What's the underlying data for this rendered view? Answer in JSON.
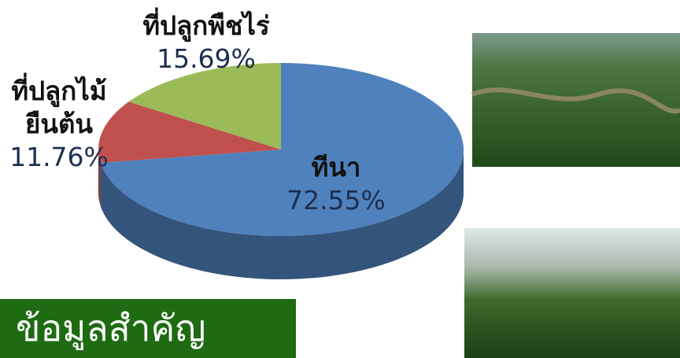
{
  "chart_data": {
    "type": "pie",
    "categories": [
      "ทีนา",
      "ที่ปลูกไม้\nยืนต้น",
      "ที่ปลูกพืชไร่"
    ],
    "values": [
      72.55,
      11.76,
      15.69
    ],
    "value_labels": [
      "72.55%",
      "11.76%",
      "15.69%"
    ],
    "colors": [
      "#4f81bd",
      "#c0504d",
      "#9bbb59"
    ]
  },
  "banner": "ข้อมูลสำคัญ"
}
